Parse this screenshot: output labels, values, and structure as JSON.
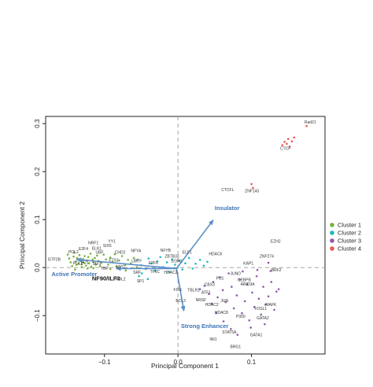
{
  "chart_data": {
    "type": "scatter",
    "title": "",
    "xlabel": "Principal Component 1",
    "ylabel": "Principal Component 2",
    "xlim": [
      -0.18,
      0.2
    ],
    "ylim": [
      -0.18,
      0.315
    ],
    "xticks": [
      -0.1,
      0.0,
      0.1
    ],
    "xtick_labels": [
      "−0.1",
      "0.0",
      "0.1"
    ],
    "yticks": [
      -0.1,
      0.0,
      0.1,
      0.2,
      0.3
    ],
    "ytick_labels": [
      "−0.1",
      "0.0",
      "0.1",
      "0.2",
      "0.3"
    ],
    "grid": false,
    "reference_lines": {
      "x": 0,
      "y": 0,
      "style": "dashed"
    },
    "legend_placement": "right",
    "series": [
      {
        "name": "Cluster 1",
        "color": "#7bb23a",
        "points": [
          [
            -0.15,
            0.027
          ],
          [
            -0.148,
            0.019
          ],
          [
            -0.146,
            0.011
          ],
          [
            -0.144,
            0.003
          ],
          [
            -0.142,
            0.023
          ],
          [
            -0.141,
            0.031
          ],
          [
            -0.139,
            0.013
          ],
          [
            -0.138,
            0.006
          ],
          [
            -0.137,
            0.02
          ],
          [
            -0.135,
            0.008
          ],
          [
            -0.134,
            0.026
          ],
          [
            -0.132,
            0.014
          ],
          [
            -0.131,
            0.001
          ],
          [
            -0.129,
            0.018
          ],
          [
            -0.128,
            0.01
          ],
          [
            -0.127,
            0.024
          ],
          [
            -0.125,
            0.004
          ],
          [
            -0.124,
            0.015
          ],
          [
            -0.122,
            0.022
          ],
          [
            -0.121,
            0.009
          ],
          [
            -0.119,
            0.029
          ],
          [
            -0.118,
            0.002
          ],
          [
            -0.116,
            0.017
          ],
          [
            -0.115,
            0.012
          ],
          [
            -0.113,
            0.02
          ],
          [
            -0.112,
            0.006
          ],
          [
            -0.11,
            0.025
          ],
          [
            -0.108,
            0.014
          ],
          [
            -0.106,
            0.003
          ],
          [
            -0.104,
            0.01
          ],
          [
            -0.101,
            0.027
          ],
          [
            -0.098,
            0.017
          ],
          [
            -0.095,
            0.006
          ],
          [
            -0.092,
            0.021
          ],
          [
            -0.089,
            0.012
          ],
          [
            -0.086,
            0.028
          ],
          [
            -0.084,
            0.002
          ],
          [
            -0.08,
            0.015
          ],
          [
            -0.076,
            0.024
          ],
          [
            -0.072,
            0.005
          ],
          [
            -0.068,
            0.016
          ],
          [
            -0.064,
            0.009
          ],
          [
            -0.06,
            0.02
          ],
          [
            -0.056,
            0.001
          ],
          [
            -0.123,
            -0.002
          ],
          [
            -0.131,
            0.007
          ],
          [
            -0.14,
            -0.004
          ],
          [
            -0.092,
            -0.003
          ],
          [
            -0.115,
            -0.001
          ],
          [
            -0.071,
            -0.006
          ]
        ]
      },
      {
        "name": "Cluster 2",
        "color": "#1fb8c1",
        "points": [
          [
            -0.055,
            0.016
          ],
          [
            -0.05,
            0.005
          ],
          [
            -0.044,
            -0.003
          ],
          [
            -0.04,
            0.019
          ],
          [
            -0.036,
            0.009
          ],
          [
            -0.031,
            -0.006
          ],
          [
            -0.028,
            0.013
          ],
          [
            -0.024,
            0.022
          ],
          [
            -0.02,
            0.001
          ],
          [
            -0.015,
            0.011
          ],
          [
            -0.012,
            -0.009
          ],
          [
            -0.008,
            0.017
          ],
          [
            -0.004,
            0.006
          ],
          [
            0.002,
            0.014
          ],
          [
            0.006,
            -0.004
          ],
          [
            0.01,
            0.009
          ],
          [
            0.015,
            0.02
          ],
          [
            0.02,
            -0.002
          ],
          [
            0.024,
            0.008
          ],
          [
            0.03,
            0.016
          ],
          [
            0.035,
            0.004
          ],
          [
            0.04,
            0.012
          ],
          [
            -0.049,
            -0.012
          ],
          [
            -0.053,
            -0.018
          ],
          [
            -0.041,
            -0.024
          ]
        ]
      },
      {
        "name": "Cluster 3",
        "color": "#8e5ba8",
        "points": [
          [
            0.03,
            -0.045
          ],
          [
            0.036,
            -0.038
          ],
          [
            0.042,
            -0.055
          ],
          [
            0.048,
            -0.03
          ],
          [
            0.054,
            -0.062
          ],
          [
            0.057,
            -0.02
          ],
          [
            0.061,
            -0.047
          ],
          [
            0.065,
            -0.072
          ],
          [
            0.069,
            -0.012
          ],
          [
            0.073,
            -0.04
          ],
          [
            0.076,
            -0.085
          ],
          [
            0.08,
            -0.058
          ],
          [
            0.084,
            -0.025
          ],
          [
            0.087,
            -0.095
          ],
          [
            0.091,
            -0.07
          ],
          [
            0.094,
            -0.035
          ],
          [
            0.097,
            -0.11
          ],
          [
            0.101,
            -0.052
          ],
          [
            0.104,
            -0.082
          ],
          [
            0.107,
            -0.018
          ],
          [
            0.11,
            -0.065
          ],
          [
            0.113,
            -0.098
          ],
          [
            0.116,
            -0.04
          ],
          [
            0.119,
            -0.077
          ],
          [
            0.123,
            -0.06
          ],
          [
            0.127,
            -0.03
          ],
          [
            0.131,
            -0.088
          ],
          [
            0.134,
            -0.05
          ],
          [
            0.126,
            -0.007
          ],
          [
            0.072,
            -0.128
          ],
          [
            0.062,
            -0.112
          ],
          [
            0.081,
            -0.14
          ],
          [
            0.099,
            -0.125
          ],
          [
            0.118,
            -0.118
          ],
          [
            0.137,
            -0.045
          ],
          [
            0.052,
            -0.095
          ],
          [
            0.046,
            -0.075
          ],
          [
            0.088,
            -0.008
          ],
          [
            0.108,
            -0.005
          ],
          [
            0.123,
            0.01
          ]
        ]
      },
      {
        "name": "Cluster 4",
        "color": "#e8575a",
        "points": [
          [
            0.1,
            0.174
          ],
          [
            0.102,
            0.166
          ],
          [
            0.142,
            0.255
          ],
          [
            0.145,
            0.262
          ],
          [
            0.148,
            0.258
          ],
          [
            0.15,
            0.268
          ],
          [
            0.152,
            0.252
          ],
          [
            0.155,
            0.263
          ],
          [
            0.158,
            0.271
          ],
          [
            0.175,
            0.295
          ]
        ]
      }
    ],
    "labels": [
      {
        "text": "Rad21",
        "x": 0.172,
        "y": 0.3
      },
      {
        "text": "CTCF",
        "x": 0.139,
        "y": 0.245
      },
      {
        "text": "CTCFL",
        "x": 0.059,
        "y": 0.159
      },
      {
        "text": "ZNF143",
        "x": 0.091,
        "y": 0.157
      },
      {
        "text": "EZH2",
        "x": 0.126,
        "y": 0.052
      },
      {
        "text": "ZNF274",
        "x": 0.111,
        "y": 0.021
      },
      {
        "text": "KAP1",
        "x": 0.089,
        "y": 0.006
      },
      {
        "text": "BRF2",
        "x": 0.127,
        "y": -0.008
      },
      {
        "text": "HDAC6",
        "x": 0.042,
        "y": 0.026
      },
      {
        "text": "JUND",
        "x": 0.071,
        "y": -0.015
      },
      {
        "text": "CEBPB",
        "x": 0.081,
        "y": -0.028
      },
      {
        "text": "ARID3A",
        "x": 0.085,
        "y": -0.037
      },
      {
        "text": "PU1",
        "x": 0.052,
        "y": -0.025
      },
      {
        "text": "CBX3",
        "x": 0.036,
        "y": -0.038
      },
      {
        "text": "ATF1",
        "x": 0.032,
        "y": -0.055
      },
      {
        "text": "NRSF",
        "x": 0.024,
        "y": -0.07
      },
      {
        "text": "FOS",
        "x": -0.006,
        "y": -0.049
      },
      {
        "text": "TBLR1",
        "x": 0.013,
        "y": -0.05
      },
      {
        "text": "BCL3",
        "x": -0.003,
        "y": -0.072
      },
      {
        "text": "JUN",
        "x": 0.058,
        "y": -0.072
      },
      {
        "text": "HDAC2",
        "x": 0.037,
        "y": -0.08
      },
      {
        "text": "FOSL1",
        "x": 0.104,
        "y": -0.088
      },
      {
        "text": "MAFK",
        "x": 0.119,
        "y": -0.08
      },
      {
        "text": "HDAC8",
        "x": 0.05,
        "y": -0.096
      },
      {
        "text": "P300",
        "x": 0.079,
        "y": -0.105
      },
      {
        "text": "GATA2",
        "x": 0.107,
        "y": -0.108
      },
      {
        "text": "STAT5A",
        "x": 0.06,
        "y": -0.137
      },
      {
        "text": "GATA1",
        "x": 0.098,
        "y": -0.143
      },
      {
        "text": "INI1",
        "x": 0.043,
        "y": -0.152
      },
      {
        "text": "BRG1",
        "x": 0.071,
        "y": -0.168
      },
      {
        "text": "NRF1",
        "x": -0.122,
        "y": 0.049
      },
      {
        "text": "YY1",
        "x": -0.095,
        "y": 0.052
      },
      {
        "text": "E2F4",
        "x": -0.135,
        "y": 0.036
      },
      {
        "text": "ELK1",
        "x": -0.117,
        "y": 0.037
      },
      {
        "text": "SIX5",
        "x": -0.102,
        "y": 0.043
      },
      {
        "text": "POL2",
        "x": -0.149,
        "y": 0.03
      },
      {
        "text": "UBF",
        "x": -0.112,
        "y": 0.029
      },
      {
        "text": "CHD2",
        "x": -0.086,
        "y": 0.029
      },
      {
        "text": "NFYA",
        "x": -0.064,
        "y": 0.032
      },
      {
        "text": "NFYB",
        "x": -0.024,
        "y": 0.033
      },
      {
        "text": "GTF2B",
        "x": -0.177,
        "y": 0.014
      },
      {
        "text": "POL2",
        "x": -0.143,
        "y": 0.006
      },
      {
        "text": "PU1",
        "x": -0.132,
        "y": 0.008
      },
      {
        "text": "TAF1",
        "x": -0.117,
        "y": 0.005
      },
      {
        "text": "ETS1",
        "x": -0.094,
        "y": 0.013
      },
      {
        "text": "UBTF",
        "x": -0.063,
        "y": 0.011
      },
      {
        "text": "ZBTB33",
        "x": -0.018,
        "y": 0.021
      },
      {
        "text": "EGR1",
        "x": -0.009,
        "y": 0.011
      },
      {
        "text": "E2F6",
        "x": -0.04,
        "y": 0.007
      },
      {
        "text": "ELF1",
        "x": 0.006,
        "y": 0.029
      },
      {
        "text": "TBP",
        "x": -0.105,
        "y": -0.005
      },
      {
        "text": "MYC",
        "x": -0.084,
        "y": -0.001
      },
      {
        "text": "HDAC2",
        "x": -0.019,
        "y": -0.013
      },
      {
        "text": "TF6C",
        "x": -0.038,
        "y": -0.011
      },
      {
        "text": "SRF",
        "x": -0.061,
        "y": -0.013
      },
      {
        "text": "POL2",
        "x": -0.085,
        "y": -0.027
      },
      {
        "text": "SP1",
        "x": -0.056,
        "y": -0.031
      }
    ],
    "arrows": [
      {
        "label": "Insulator",
        "from": [
          -0.002,
          -0.002
        ],
        "to": [
          0.048,
          0.099
        ],
        "label_pos": [
          0.05,
          0.12
        ]
      },
      {
        "label": "Active Promoter",
        "from": [
          -0.002,
          -0.002
        ],
        "to": [
          -0.138,
          0.017
        ],
        "label_pos": [
          -0.172,
          -0.018
        ]
      },
      {
        "label": "NF90/ILF3",
        "from": [
          -0.002,
          -0.002
        ],
        "to": [
          -0.084,
          -0.002
        ],
        "label_pos": [
          -0.117,
          -0.027
        ]
      },
      {
        "label": "Strong Enhancer",
        "from": [
          -0.002,
          -0.002
        ],
        "to": [
          0.008,
          -0.09
        ],
        "label_pos": [
          0.004,
          -0.126
        ]
      }
    ]
  },
  "legend": {
    "items": [
      {
        "name": "Cluster 1",
        "color": "#7bb23a"
      },
      {
        "name": "Cluster 2",
        "color": "#1fb8c1"
      },
      {
        "name": "Cluster 3",
        "color": "#8e5ba8"
      },
      {
        "name": "Cluster 4",
        "color": "#e8575a"
      }
    ]
  },
  "colors": {
    "arrow": "#5b8fc9",
    "arrow_label": "#3f74b8",
    "reference_line": "#999999"
  }
}
